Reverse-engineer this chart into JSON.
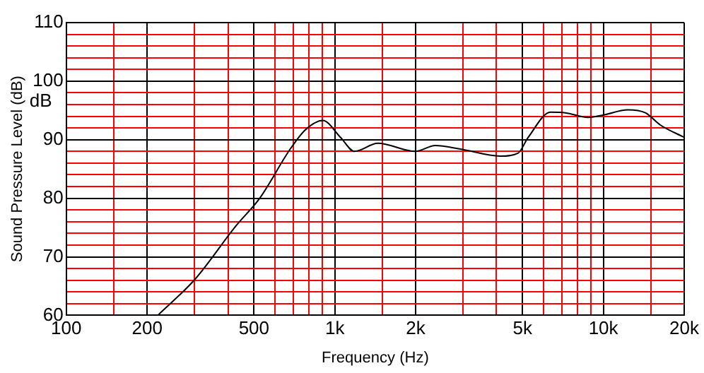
{
  "chart_data": {
    "type": "line",
    "xlabel": "Frequency (Hz)",
    "ylabel": "Sound Pressure Level (dB)",
    "annotations": [
      "dB"
    ],
    "log": "x",
    "grid": true,
    "legend": false,
    "marker": "none",
    "line_style": "solid",
    "xlim": [
      100,
      20000
    ],
    "ylim": [
      60,
      110
    ],
    "xticks": [
      100,
      {
        "value": 150,
        "label": null
      },
      200,
      {
        "value": 300,
        "label": null
      },
      {
        "value": 400,
        "label": null
      },
      500,
      {
        "value": 600,
        "label": null
      },
      {
        "value": 700,
        "label": null
      },
      {
        "value": 800,
        "label": null
      },
      {
        "value": 900,
        "label": null
      },
      {
        "value": 1000,
        "label": "1k"
      },
      {
        "value": 1500,
        "label": null
      },
      {
        "value": 2000,
        "label": "2k"
      },
      {
        "value": 3000,
        "label": null
      },
      {
        "value": 4000,
        "label": null
      },
      {
        "value": 5000,
        "label": "5k"
      },
      {
        "value": 6000,
        "label": null
      },
      {
        "value": 7000,
        "label": null
      },
      {
        "value": 8000,
        "label": null
      },
      {
        "value": 9000,
        "label": null
      },
      {
        "value": 10000,
        "label": "10k"
      },
      {
        "value": 15000,
        "label": null
      },
      {
        "value": 20000,
        "label": "20k"
      }
    ],
    "yticks": [
      60,
      {
        "value": 62,
        "label": null
      },
      {
        "value": 64,
        "label": null
      },
      {
        "value": 66,
        "label": null
      },
      {
        "value": 68,
        "label": null
      },
      70,
      {
        "value": 72,
        "label": null
      },
      {
        "value": 74,
        "label": null
      },
      {
        "value": 76,
        "label": null
      },
      {
        "value": 78,
        "label": null
      },
      80,
      {
        "value": 82,
        "label": null
      },
      {
        "value": 84,
        "label": null
      },
      {
        "value": 86,
        "label": null
      },
      {
        "value": 88,
        "label": null
      },
      90,
      {
        "value": 92,
        "label": null
      },
      {
        "value": 94,
        "label": null
      },
      {
        "value": 96,
        "label": null
      },
      {
        "value": 98,
        "label": null
      },
      100,
      {
        "value": 102,
        "label": null
      },
      {
        "value": 104,
        "label": null
      },
      {
        "value": 106,
        "label": null
      },
      {
        "value": 108,
        "label": null
      },
      110
    ],
    "x": [
      219,
      302,
      427,
      527,
      682,
      777,
      902,
      1050,
      1183,
      1446,
      1995,
      2365,
      2935,
      4130,
      4810,
      5250,
      6360,
      7220,
      8750,
      9950,
      12330,
      14330,
      16300,
      20000
    ],
    "series": [
      {
        "color": "#000000",
        "values": [
          60,
          66.2,
          75.2,
          80.1,
          88.4,
          91.7,
          93.3,
          90.4,
          88.0,
          89.4,
          88.0,
          89.0,
          88.4,
          87.2,
          87.7,
          90.4,
          94.7,
          94.6,
          93.8,
          94.2,
          95.1,
          94.6,
          92.5,
          90.4
        ]
      }
    ]
  }
}
